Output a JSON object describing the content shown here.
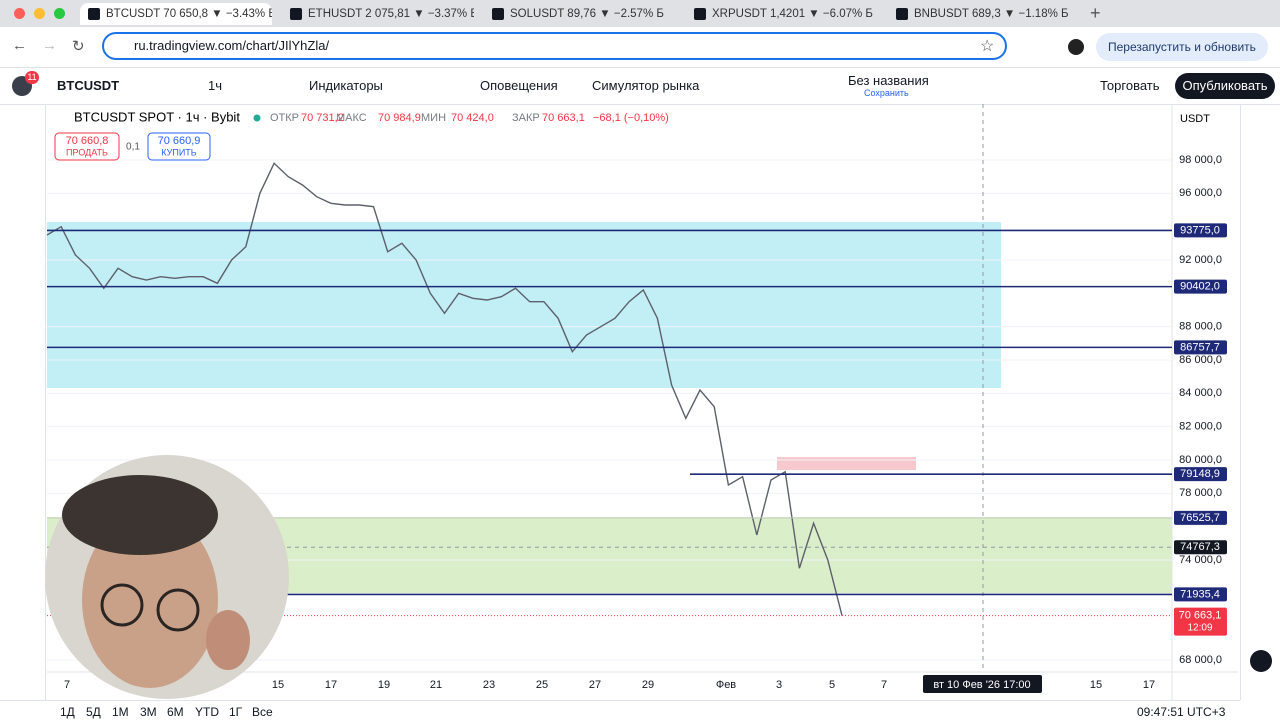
{
  "browser": {
    "tabs": [
      "BTCUSDT 70 650,8 ▼ −3.43% Б",
      "ETHUSDT 2 075,81 ▼ −3.37% Б",
      "SOLUSDT 89,76 ▼ −2.57% Б",
      "XRPUSDT 1,4201 ▼ −6.07% Б",
      "BNBUSDT 689,3 ▼ −1.18% Б"
    ],
    "url": "ru.tradingview.com/chart/JIlYhZla/",
    "relaunch": "Перезапустить и обновить"
  },
  "toolbar": {
    "badge": "11",
    "symbol": "BTCUSDT",
    "interval": "1ч",
    "indicators": "Индикаторы",
    "alerts": "Оповещения",
    "replay": "Симулятор рынка",
    "layout_name": "Без названия",
    "layout_status": "Сохранить",
    "trade": "Торговать",
    "publish": "Опубликовать"
  },
  "legend": {
    "open_label": "ОТКР",
    "open": "70 731,2",
    "high_label": "МАКС",
    "high": "70 984,9",
    "low_label": "МИН",
    "low": "70 424,0",
    "close_label": "ЗАКР",
    "close": "70 663,1",
    "change": "−68,1 (−0,10%)",
    "sell_price": "70 660,8",
    "sell": "ПРОДАТЬ",
    "spread": "0,1",
    "buy_price": "70 660,9",
    "buy": "КУПИТЬ"
  },
  "chart_data": {
    "type": "line",
    "title": "BTCUSDT SPOT · 1ч · Bybit",
    "currency": "USDT",
    "color": "#5d606b",
    "values": [
      93500,
      94000,
      92300,
      91500,
      90300,
      91500,
      91000,
      90800,
      91000,
      90900,
      91000,
      91000,
      90600,
      92000,
      92800,
      96000,
      97800,
      97000,
      96500,
      95800,
      95400,
      95300,
      95300,
      95200,
      92500,
      93000,
      92000,
      90000,
      88800,
      90000,
      89700,
      89600,
      89800,
      90300,
      89500,
      89500,
      88500,
      86500,
      87500,
      88000,
      88500,
      89500,
      90200,
      88500,
      84500,
      82500,
      84200,
      83200,
      78500,
      79000,
      75500,
      78800,
      79300,
      73500,
      76200,
      74000,
      70663.1
    ],
    "ylim": [
      67280,
      101360
    ],
    "yticks": [
      {
        "value": 98000,
        "label": "98 000,0"
      },
      {
        "value": 96000,
        "label": "96 000,0"
      },
      {
        "value": 92000,
        "label": "92 000,0"
      },
      {
        "value": 88000,
        "label": "88 000,0"
      },
      {
        "value": 86000,
        "label": "86 000,0"
      },
      {
        "value": 84000,
        "label": "84 000,0"
      },
      {
        "value": 82000,
        "label": "82 000,0"
      },
      {
        "value": 80000,
        "label": "80 000,0"
      },
      {
        "value": 78000,
        "label": "78 000,0"
      },
      {
        "value": 74000,
        "label": "74 000,0"
      },
      {
        "value": 68000,
        "label": "68 000,0"
      }
    ],
    "x_labels": [
      "7",
      "15",
      "17",
      "19",
      "21",
      "23",
      "25",
      "27",
      "29",
      "Фев",
      "3",
      "5",
      "7",
      "15",
      "17"
    ],
    "levels": [
      {
        "value": 93775,
        "label": "93775,0"
      },
      {
        "value": 90402,
        "label": "90402,0"
      },
      {
        "value": 86757.7,
        "label": "86757,7"
      },
      {
        "value": 79148.9,
        "label": "79148,9"
      },
      {
        "value": 76525.7,
        "label": "76525,7"
      },
      {
        "value": 71935.4,
        "label": "71935,4"
      }
    ],
    "crosshair": {
      "value": 74767.3,
      "label": "74767,3",
      "time": "вт 10 Фев '26  17:00"
    },
    "last_price": {
      "value": 70663.1,
      "label": "70 663,1",
      "countdown": "12:09"
    }
  },
  "bottom": {
    "ranges": [
      "1Д",
      "5Д",
      "1М",
      "3М",
      "6М",
      "YTD",
      "1Г",
      "Все"
    ],
    "clock": "09:47:51 UTC+3"
  }
}
